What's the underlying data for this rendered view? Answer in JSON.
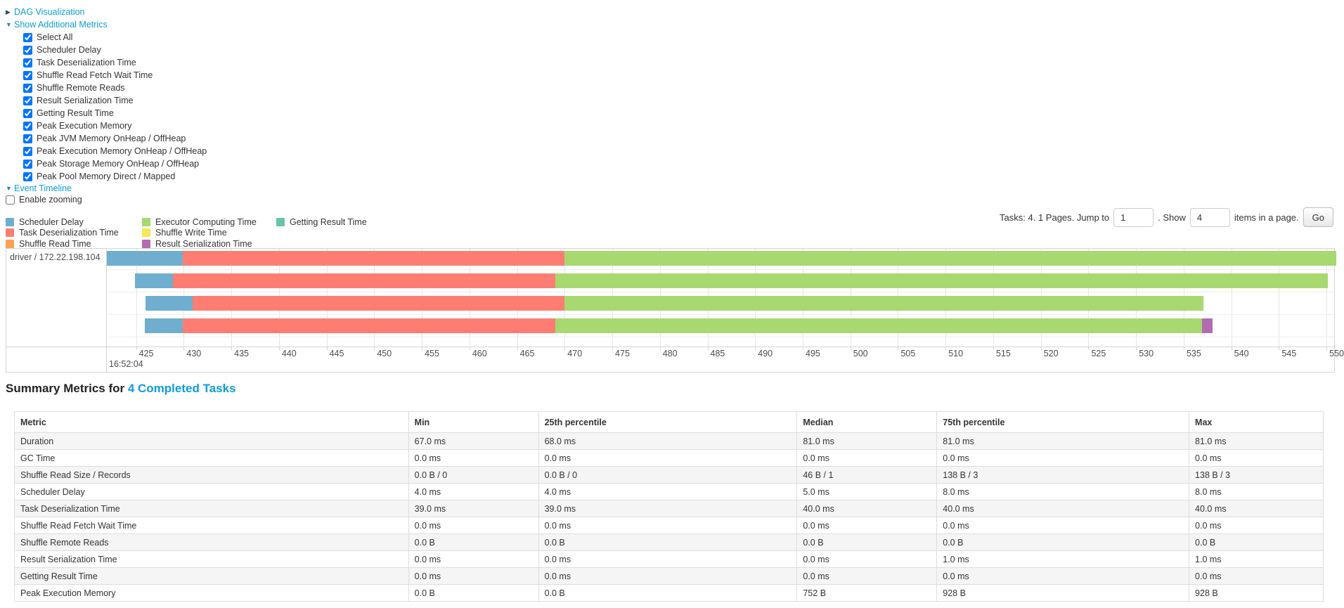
{
  "toggles": {
    "dag": {
      "label": "DAG Visualization",
      "state": "collapsed"
    },
    "metrics": {
      "label": "Show Additional Metrics",
      "state": "expanded"
    },
    "timeline": {
      "label": "Event Timeline",
      "state": "expanded"
    }
  },
  "metric_checkboxes": [
    {
      "label": "Select All",
      "checked": true
    },
    {
      "label": "Scheduler Delay",
      "checked": true
    },
    {
      "label": "Task Deserialization Time",
      "checked": true
    },
    {
      "label": "Shuffle Read Fetch Wait Time",
      "checked": true
    },
    {
      "label": "Shuffle Remote Reads",
      "checked": true
    },
    {
      "label": "Result Serialization Time",
      "checked": true
    },
    {
      "label": "Getting Result Time",
      "checked": true
    },
    {
      "label": "Peak Execution Memory",
      "checked": true
    },
    {
      "label": "Peak JVM Memory OnHeap / OffHeap",
      "checked": true
    },
    {
      "label": "Peak Execution Memory OnHeap / OffHeap",
      "checked": true
    },
    {
      "label": "Peak Storage Memory OnHeap / OffHeap",
      "checked": true
    },
    {
      "label": "Peak Pool Memory Direct / Mapped",
      "checked": true
    }
  ],
  "enable_zooming": {
    "label": "Enable zooming",
    "checked": false
  },
  "legend": {
    "columns": [
      [
        {
          "label": "Scheduler Delay",
          "color": "#6FAECE"
        },
        {
          "label": "Task Deserialization Time",
          "color": "#FD7D73"
        },
        {
          "label": "Shuffle Read Time",
          "color": "#F9A257"
        }
      ],
      [
        {
          "label": "Executor Computing Time",
          "color": "#A8D870"
        },
        {
          "label": "Shuffle Write Time",
          "color": "#F5E85B"
        },
        {
          "label": "Result Serialization Time",
          "color": "#B26CB2"
        }
      ],
      [
        {
          "label": "Getting Result Time",
          "color": "#69C5A4"
        }
      ]
    ]
  },
  "pagination": {
    "summary_text": "Tasks: 4. 1 Pages. Jump to",
    "jump_value": "1",
    "show_label": ". Show",
    "show_value": "4",
    "items_label": "items in a page.",
    "go_label": "Go"
  },
  "chart_data": {
    "type": "timeline",
    "group_label": "driver / 172.22.198.104",
    "time_label": "16:52:04",
    "axis": {
      "min": 422,
      "max": 550.8,
      "ticks": [
        425,
        430,
        435,
        440,
        445,
        450,
        455,
        460,
        465,
        470,
        475,
        480,
        485,
        490,
        495,
        500,
        505,
        510,
        515,
        520,
        525,
        530,
        535,
        540,
        545,
        550
      ]
    },
    "colors": {
      "scheduler_delay": "#6FAECE",
      "task_deserialization": "#FD7D73",
      "shuffle_read": "#F9A257",
      "executor_computing": "#A8D870",
      "shuffle_write": "#F5E85B",
      "result_serialization": "#B26CB2",
      "getting_result": "#69C5A4"
    },
    "tasks": [
      {
        "segments": [
          {
            "type": "scheduler_delay",
            "start": 421.9,
            "end": 429.9
          },
          {
            "type": "task_deserialization",
            "start": 429.9,
            "end": 470.0
          },
          {
            "type": "executor_computing",
            "start": 470.0,
            "end": 551.0
          }
        ]
      },
      {
        "segments": [
          {
            "type": "scheduler_delay",
            "start": 424.9,
            "end": 428.9
          },
          {
            "type": "task_deserialization",
            "start": 428.9,
            "end": 469.0
          },
          {
            "type": "executor_computing",
            "start": 469.0,
            "end": 550.1
          }
        ]
      },
      {
        "segments": [
          {
            "type": "scheduler_delay",
            "start": 426.0,
            "end": 430.9
          },
          {
            "type": "task_deserialization",
            "start": 430.9,
            "end": 470.0
          },
          {
            "type": "executor_computing",
            "start": 470.0,
            "end": 537.1
          }
        ]
      },
      {
        "segments": [
          {
            "type": "scheduler_delay",
            "start": 425.9,
            "end": 429.9
          },
          {
            "type": "task_deserialization",
            "start": 429.9,
            "end": 469.0
          },
          {
            "type": "executor_computing",
            "start": 469.0,
            "end": 536.9
          },
          {
            "type": "result_serialization",
            "start": 536.9,
            "end": 538.0
          }
        ]
      }
    ]
  },
  "summary": {
    "title_prefix": "Summary Metrics for ",
    "title_link": "4 Completed Tasks",
    "table": {
      "headers": [
        "Metric",
        "Min",
        "25th percentile",
        "Median",
        "75th percentile",
        "Max"
      ],
      "rows": [
        {
          "metric": "Duration",
          "values": [
            "67.0 ms",
            "68.0 ms",
            "81.0 ms",
            "81.0 ms",
            "81.0 ms"
          ]
        },
        {
          "metric": "GC Time",
          "values": [
            "0.0 ms",
            "0.0 ms",
            "0.0 ms",
            "0.0 ms",
            "0.0 ms"
          ]
        },
        {
          "metric": "Shuffle Read Size / Records",
          "values": [
            "0.0 B / 0",
            "0.0 B / 0",
            "46 B / 1",
            "138 B / 3",
            "138 B / 3"
          ]
        },
        {
          "metric": "Scheduler Delay",
          "values": [
            "4.0 ms",
            "4.0 ms",
            "5.0 ms",
            "8.0 ms",
            "8.0 ms"
          ]
        },
        {
          "metric": "Task Deserialization Time",
          "values": [
            "39.0 ms",
            "39.0 ms",
            "40.0 ms",
            "40.0 ms",
            "40.0 ms"
          ]
        },
        {
          "metric": "Shuffle Read Fetch Wait Time",
          "values": [
            "0.0 ms",
            "0.0 ms",
            "0.0 ms",
            "0.0 ms",
            "0.0 ms"
          ]
        },
        {
          "metric": "Shuffle Remote Reads",
          "values": [
            "0.0 B",
            "0.0 B",
            "0.0 B",
            "0.0 B",
            "0.0 B"
          ]
        },
        {
          "metric": "Result Serialization Time",
          "values": [
            "0.0 ms",
            "0.0 ms",
            "0.0 ms",
            "1.0 ms",
            "1.0 ms"
          ]
        },
        {
          "metric": "Getting Result Time",
          "values": [
            "0.0 ms",
            "0.0 ms",
            "0.0 ms",
            "0.0 ms",
            "0.0 ms"
          ]
        },
        {
          "metric": "Peak Execution Memory",
          "values": [
            "0.0 B",
            "0.0 B",
            "752 B",
            "928 B",
            "928 B"
          ]
        }
      ]
    }
  }
}
